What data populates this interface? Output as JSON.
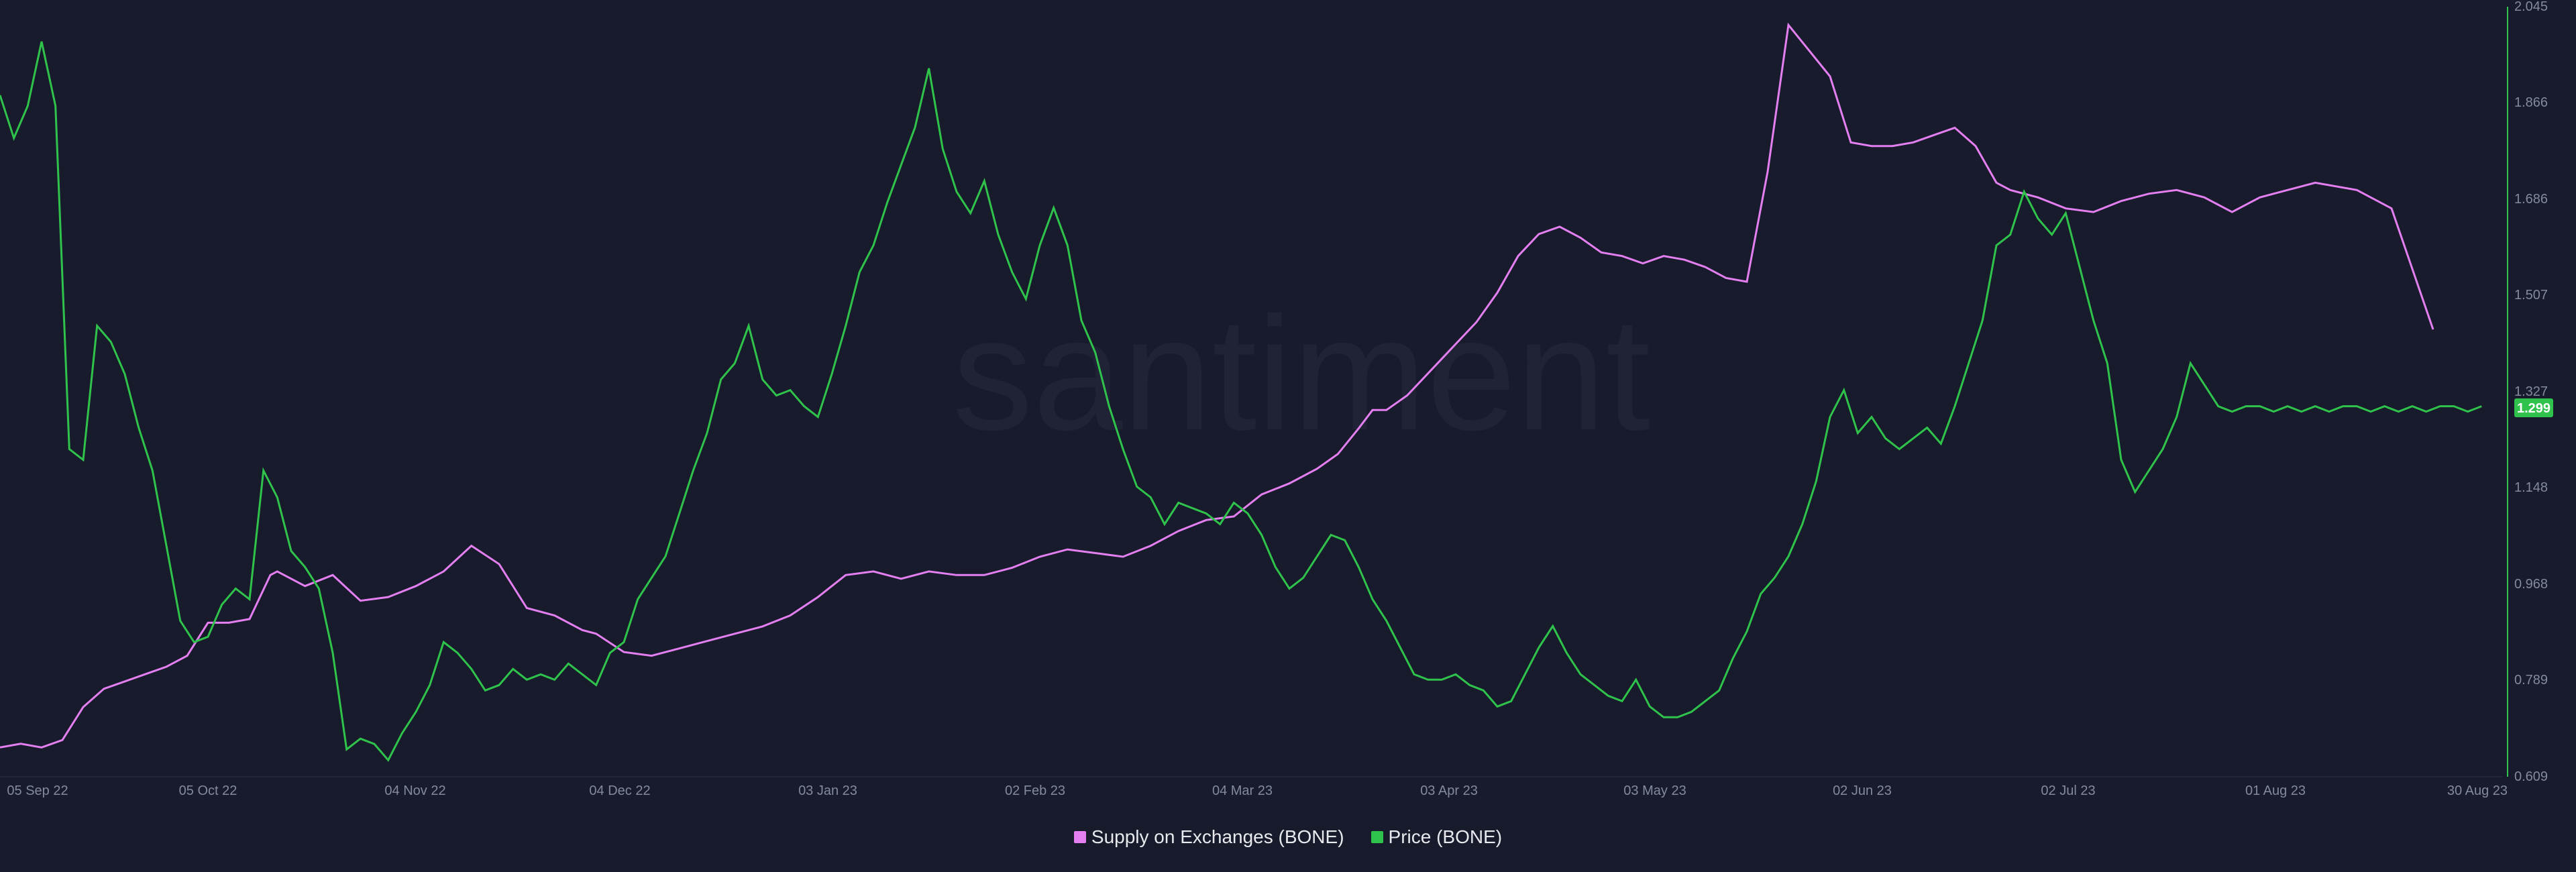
{
  "watermark": "santiment",
  "colors": {
    "background": "#181b2b",
    "supply": "#e37ff0",
    "price": "#2fc34c",
    "grid": "#22263a",
    "tick": "#848a9e"
  },
  "legend": [
    {
      "label": "Supply on Exchanges (BONE)",
      "color": "#e37ff0"
    },
    {
      "label": "Price (BONE)",
      "color": "#2fc34c"
    }
  ],
  "chart_data": {
    "type": "line",
    "x_labels": [
      "05 Sep 22",
      "05 Oct 22",
      "04 Nov 22",
      "04 Dec 22",
      "03 Jan 23",
      "02 Feb 23",
      "04 Mar 23",
      "03 Apr 23",
      "03 May 23",
      "02 Jun 23",
      "02 Jul 23",
      "01 Aug 23",
      "30 Aug 23"
    ],
    "y_right_ticks": [
      "0.609",
      "0.789",
      "0.968",
      "1.148",
      "1.327",
      "1.507",
      "1.686",
      "1.866",
      "2.045"
    ],
    "y_right_range": [
      0.609,
      2.045
    ],
    "current_price_label": "1.299",
    "series": [
      {
        "name": "Supply on Exchanges (BONE)",
        "axis": "left (unlabeled, relative scale)",
        "x": [
          0,
          3,
          6,
          9,
          12,
          15,
          18,
          21,
          24,
          27,
          30,
          33,
          36,
          39,
          40,
          44,
          48,
          52,
          56,
          60,
          64,
          68,
          72,
          76,
          80,
          84,
          86,
          90,
          94,
          98,
          102,
          106,
          110,
          114,
          118,
          122,
          126,
          130,
          134,
          138,
          142,
          146,
          150,
          154,
          158,
          162,
          166,
          170,
          174,
          178,
          182,
          186,
          190,
          193,
          196,
          198,
          200,
          203,
          206,
          210,
          213,
          216,
          219,
          222,
          225,
          228,
          231,
          234,
          237,
          240,
          243,
          246,
          249,
          252,
          255,
          258,
          261,
          264,
          267,
          270,
          273,
          276,
          279,
          282,
          285,
          288,
          290,
          294,
          298,
          302,
          306,
          310,
          314,
          318,
          322,
          326,
          330,
          334,
          340,
          345,
          351
        ],
        "y": [
          0.08,
          0.09,
          0.08,
          0.1,
          0.19,
          0.24,
          0.26,
          0.28,
          0.3,
          0.33,
          0.42,
          0.42,
          0.43,
          0.55,
          0.56,
          0.52,
          0.55,
          0.48,
          0.49,
          0.52,
          0.56,
          0.63,
          0.58,
          0.46,
          0.44,
          0.4,
          0.39,
          0.34,
          0.33,
          0.35,
          0.37,
          0.39,
          0.41,
          0.44,
          0.49,
          0.55,
          0.56,
          0.54,
          0.56,
          0.55,
          0.55,
          0.57,
          0.6,
          0.62,
          0.61,
          0.6,
          0.63,
          0.67,
          0.7,
          0.71,
          0.77,
          0.8,
          0.84,
          0.88,
          0.95,
          1.0,
          1.0,
          1.04,
          1.1,
          1.18,
          1.24,
          1.32,
          1.42,
          1.48,
          1.5,
          1.47,
          1.43,
          1.42,
          1.4,
          1.42,
          1.41,
          1.39,
          1.36,
          1.35,
          1.65,
          2.05,
          1.98,
          1.91,
          1.73,
          1.72,
          1.72,
          1.73,
          1.75,
          1.77,
          1.72,
          1.62,
          1.6,
          1.58,
          1.55,
          1.54,
          1.57,
          1.59,
          1.6,
          1.58,
          1.54,
          1.58,
          1.6,
          1.62,
          1.6,
          1.55,
          1.22
        ]
      },
      {
        "name": "Price (BONE)",
        "axis": "right",
        "x": [
          0,
          2,
          4,
          6,
          8,
          10,
          12,
          14,
          16,
          18,
          20,
          22,
          24,
          26,
          28,
          30,
          32,
          34,
          36,
          38,
          40,
          42,
          44,
          46,
          48,
          50,
          52,
          54,
          56,
          58,
          60,
          62,
          64,
          66,
          68,
          70,
          72,
          74,
          76,
          78,
          80,
          82,
          84,
          86,
          88,
          90,
          92,
          94,
          96,
          98,
          100,
          102,
          104,
          106,
          108,
          110,
          112,
          114,
          116,
          118,
          120,
          122,
          124,
          126,
          128,
          130,
          132,
          134,
          136,
          138,
          140,
          142,
          144,
          146,
          148,
          150,
          152,
          154,
          156,
          158,
          160,
          162,
          164,
          166,
          168,
          170,
          172,
          174,
          176,
          178,
          180,
          182,
          184,
          186,
          188,
          190,
          192,
          194,
          196,
          198,
          200,
          202,
          204,
          206,
          208,
          210,
          212,
          214,
          216,
          218,
          220,
          222,
          224,
          226,
          228,
          230,
          232,
          234,
          236,
          238,
          240,
          242,
          244,
          246,
          248,
          250,
          252,
          254,
          256,
          258,
          260,
          262,
          264,
          266,
          268,
          270,
          272,
          274,
          276,
          278,
          280,
          282,
          284,
          286,
          288,
          290,
          292,
          294,
          296,
          298,
          300,
          302,
          304,
          306,
          308,
          310,
          312,
          314,
          316,
          318,
          320,
          322,
          324,
          326,
          328,
          330,
          332,
          334,
          336,
          338,
          340,
          342,
          344,
          346,
          348,
          350,
          352,
          354,
          356,
          358
        ],
        "y": [
          1.88,
          1.8,
          1.86,
          1.98,
          1.86,
          1.22,
          1.2,
          1.45,
          1.42,
          1.36,
          1.26,
          1.18,
          1.04,
          0.9,
          0.86,
          0.87,
          0.93,
          0.96,
          0.94,
          1.18,
          1.13,
          1.03,
          1.0,
          0.96,
          0.84,
          0.66,
          0.68,
          0.67,
          0.64,
          0.69,
          0.73,
          0.78,
          0.86,
          0.84,
          0.81,
          0.77,
          0.78,
          0.81,
          0.79,
          0.8,
          0.79,
          0.82,
          0.8,
          0.78,
          0.84,
          0.86,
          0.94,
          0.98,
          1.02,
          1.1,
          1.18,
          1.25,
          1.35,
          1.38,
          1.45,
          1.35,
          1.32,
          1.33,
          1.3,
          1.28,
          1.36,
          1.45,
          1.55,
          1.6,
          1.68,
          1.75,
          1.82,
          1.93,
          1.78,
          1.7,
          1.66,
          1.72,
          1.62,
          1.55,
          1.5,
          1.6,
          1.67,
          1.6,
          1.46,
          1.4,
          1.3,
          1.22,
          1.15,
          1.13,
          1.08,
          1.12,
          1.11,
          1.1,
          1.08,
          1.12,
          1.1,
          1.06,
          1.0,
          0.96,
          0.98,
          1.02,
          1.06,
          1.05,
          1.0,
          0.94,
          0.9,
          0.85,
          0.8,
          0.79,
          0.79,
          0.8,
          0.78,
          0.77,
          0.74,
          0.75,
          0.8,
          0.85,
          0.89,
          0.84,
          0.8,
          0.78,
          0.76,
          0.75,
          0.79,
          0.74,
          0.72,
          0.72,
          0.73,
          0.75,
          0.77,
          0.83,
          0.88,
          0.95,
          0.98,
          1.02,
          1.08,
          1.16,
          1.28,
          1.33,
          1.25,
          1.28,
          1.24,
          1.22,
          1.24,
          1.26,
          1.23,
          1.3,
          1.38,
          1.46,
          1.6,
          1.62,
          1.7,
          1.65,
          1.62,
          1.66,
          1.56,
          1.46,
          1.38,
          1.2,
          1.14,
          1.18,
          1.22,
          1.28,
          1.38,
          1.34,
          1.3,
          1.29,
          1.3,
          1.3,
          1.29,
          1.3,
          1.29,
          1.3,
          1.29,
          1.3,
          1.3,
          1.29,
          1.3,
          1.29,
          1.3,
          1.29,
          1.3,
          1.3,
          1.29,
          1.3
        ]
      }
    ],
    "grid": false
  }
}
